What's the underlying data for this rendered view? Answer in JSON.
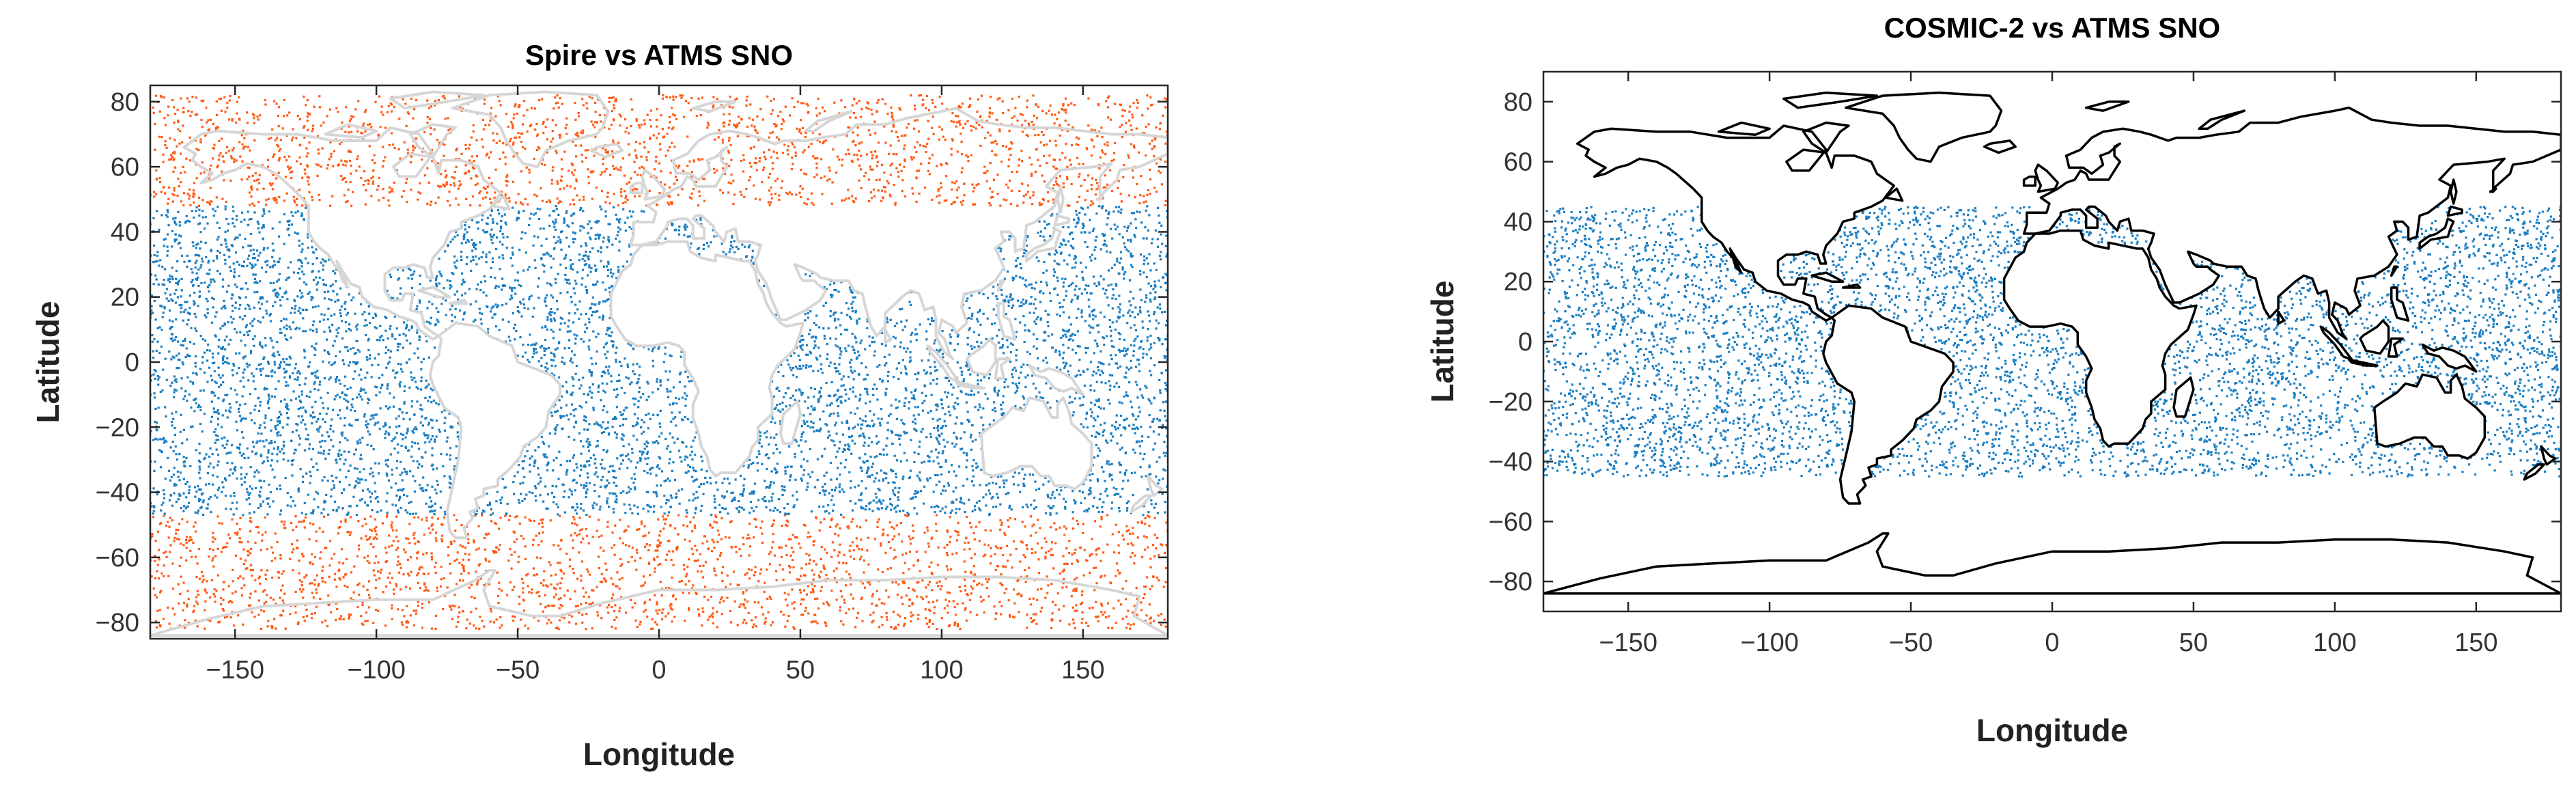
{
  "colors": {
    "polar_points": "#ff5a14",
    "midlat_points": "#1a7ec2",
    "coast_light": "#d6d6d6",
    "coast_dark": "#000000"
  },
  "chart_data": [
    {
      "type": "scatter",
      "title": "Spire vs ATMS SNO",
      "xlabel": "Longitude",
      "ylabel": "Latitude",
      "xlim": [
        -180,
        180
      ],
      "ylim": [
        -85,
        85
      ],
      "xticks": [
        -150,
        -100,
        -50,
        0,
        50,
        100,
        150
      ],
      "yticks": [
        -80,
        -60,
        -40,
        -20,
        0,
        20,
        40,
        60,
        80
      ],
      "xtick_labels": [
        "−150",
        "−100",
        "−50",
        "0",
        "50",
        "100",
        "150"
      ],
      "ytick_labels": [
        "−80",
        "−60",
        "−40",
        "−20",
        "0",
        "20",
        "40",
        "60",
        "80"
      ],
      "grid": false,
      "coastline": "light-gray",
      "series": [
        {
          "lat_range": [
            -82,
            -47
          ],
          "lon_range": [
            -180,
            180
          ],
          "color": "#ff5a14",
          "coverage": "ocean and land"
        },
        {
          "lat_range": [
            -47,
            48
          ],
          "lon_range": [
            -180,
            180
          ],
          "color": "#1a7ec2",
          "coverage": "ocean only"
        },
        {
          "lat_range": [
            48,
            82
          ],
          "lon_range": [
            -180,
            180
          ],
          "color": "#ff5a14",
          "coverage": "ocean and land"
        }
      ]
    },
    {
      "type": "scatter",
      "title": "COSMIC-2 vs ATMS SNO",
      "xlabel": "Longitude",
      "ylabel": "Latitude",
      "xlim": [
        -180,
        180
      ],
      "ylim": [
        -90,
        90
      ],
      "xticks": [
        -150,
        -100,
        -50,
        0,
        50,
        100,
        150
      ],
      "yticks": [
        -80,
        -60,
        -40,
        -20,
        0,
        20,
        40,
        60,
        80
      ],
      "xtick_labels": [
        "−150",
        "−100",
        "−50",
        "0",
        "50",
        "100",
        "150"
      ],
      "ytick_labels": [
        "−80",
        "−60",
        "−40",
        "−20",
        "0",
        "20",
        "40",
        "60",
        "80"
      ],
      "grid": false,
      "coastline": "black",
      "series": [
        {
          "lat_range": [
            -45,
            45
          ],
          "lon_range": [
            -180,
            180
          ],
          "color": "#1a7ec2",
          "coverage": "ocean only"
        }
      ]
    }
  ]
}
